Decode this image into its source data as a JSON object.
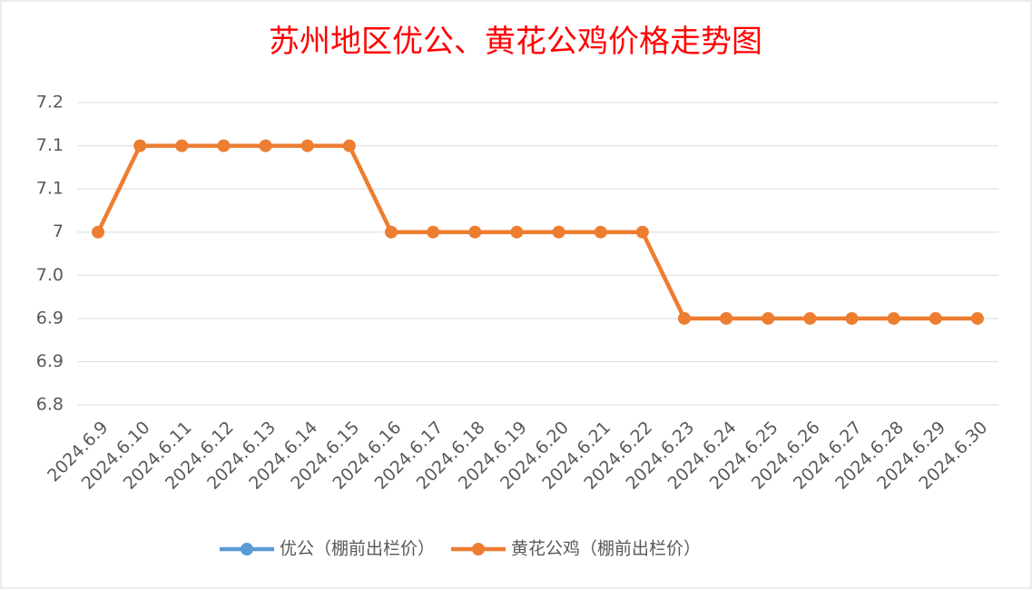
{
  "chart_data": {
    "type": "line",
    "title": "苏州地区优公、黄花公鸡价格走势图",
    "categories": [
      "2024.6.9",
      "2024.6.10",
      "2024.6.11",
      "2024.6.12",
      "2024.6.13",
      "2024.6.14",
      "2024.6.15",
      "2024.6.16",
      "2024.6.17",
      "2024.6.18",
      "2024.6.19",
      "2024.6.20",
      "2024.6.21",
      "2024.6.22",
      "2024.6.23",
      "2024.6.24",
      "2024.6.25",
      "2024.6.26",
      "2024.6.27",
      "2024.6.28",
      "2024.6.29",
      "2024.6.30"
    ],
    "series": [
      {
        "name": "优公（棚前出栏价）",
        "color": "#5b9bd5",
        "values": [
          null,
          null,
          null,
          null,
          null,
          null,
          null,
          null,
          null,
          null,
          null,
          null,
          null,
          null,
          null,
          null,
          null,
          null,
          null,
          null,
          null,
          null
        ]
      },
      {
        "name": "黄花公鸡（棚前出栏价）",
        "color": "#ed7d31",
        "values": [
          7.0,
          7.1,
          7.1,
          7.1,
          7.1,
          7.1,
          7.1,
          7.0,
          7.0,
          7.0,
          7.0,
          7.0,
          7.0,
          7.0,
          6.9,
          6.9,
          6.9,
          6.9,
          6.9,
          6.9,
          6.9,
          6.9
        ]
      }
    ],
    "ylim": [
      6.8,
      7.15
    ],
    "yticks": [
      6.8,
      {
        "value": 6.85,
        "label": "6.9"
      },
      6.9,
      {
        "value": 6.95,
        "label": "7.0"
      },
      7.0,
      {
        "value": 7.05,
        "label": "7.1"
      },
      7.1,
      {
        "value": 7.15,
        "label": "7.2"
      }
    ],
    "grid": true,
    "legend": "bottom"
  }
}
